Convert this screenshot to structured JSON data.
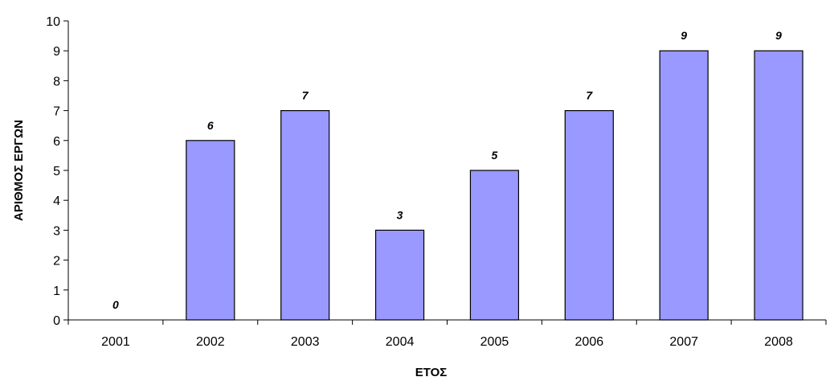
{
  "chart_data": {
    "type": "bar",
    "categories": [
      "2001",
      "2002",
      "2003",
      "2004",
      "2005",
      "2006",
      "2007",
      "2008"
    ],
    "values": [
      0,
      6,
      7,
      3,
      5,
      7,
      9,
      9
    ],
    "data_labels": [
      "0",
      "6",
      "7",
      "3",
      "5",
      "7",
      "9",
      "9"
    ],
    "title": "",
    "xlabel": "ΕΤΟΣ",
    "ylabel": "ΑΡΙΘΜΟΣ ΕΡΓΩΝ",
    "ylim": [
      0,
      10
    ],
    "yticks": [
      "0",
      "1",
      "2",
      "3",
      "4",
      "5",
      "6",
      "7",
      "8",
      "9",
      "10"
    ],
    "grid": false,
    "legend": "none",
    "colors": {
      "bar_fill": "#9999ff",
      "bar_stroke": "#000000",
      "axis": "#000000"
    }
  }
}
